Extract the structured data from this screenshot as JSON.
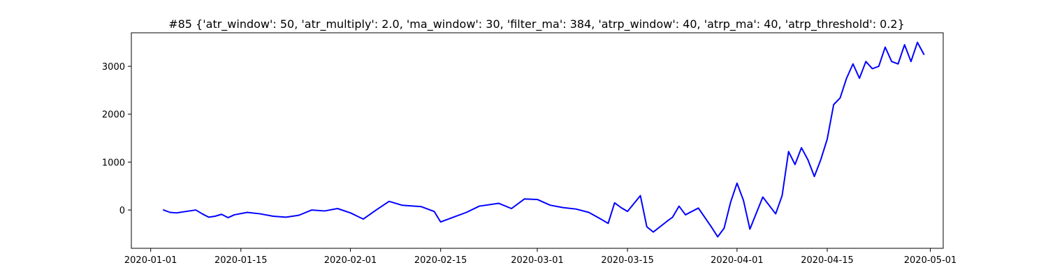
{
  "chart_data": {
    "type": "line",
    "title": "#85 {'atr_window': 50, 'atr_multiply': 2.0, 'ma_window': 30, 'filter_ma': 384, 'atrp_window': 40, 'atrp_ma': 40, 'atrp_threshold': 0.2}",
    "xlabel": "",
    "ylabel": "",
    "x_ticks": [
      "2020-01-01",
      "2020-01-15",
      "2020-02-01",
      "2020-02-15",
      "2020-03-01",
      "2020-03-15",
      "2020-04-01",
      "2020-04-15",
      "2020-05-01"
    ],
    "y_ticks": [
      0,
      1000,
      2000,
      3000
    ],
    "xlim": [
      "2019-12-29",
      "2020-05-03"
    ],
    "ylim": [
      -800,
      3700
    ],
    "grid": false,
    "series": [
      {
        "color": "#0000ff",
        "points": [
          [
            "2020-01-03",
            0
          ],
          [
            "2020-01-04",
            -50
          ],
          [
            "2020-01-05",
            -60
          ],
          [
            "2020-01-08",
            0
          ],
          [
            "2020-01-09",
            -80
          ],
          [
            "2020-01-10",
            -150
          ],
          [
            "2020-01-11",
            -130
          ],
          [
            "2020-01-12",
            -90
          ],
          [
            "2020-01-13",
            -160
          ],
          [
            "2020-01-14",
            -100
          ],
          [
            "2020-01-16",
            -50
          ],
          [
            "2020-01-18",
            -80
          ],
          [
            "2020-01-20",
            -130
          ],
          [
            "2020-01-22",
            -150
          ],
          [
            "2020-01-24",
            -110
          ],
          [
            "2020-01-26",
            0
          ],
          [
            "2020-01-28",
            -20
          ],
          [
            "2020-01-30",
            30
          ],
          [
            "2020-02-01",
            -60
          ],
          [
            "2020-02-03",
            -190
          ],
          [
            "2020-02-05",
            0
          ],
          [
            "2020-02-07",
            180
          ],
          [
            "2020-02-09",
            100
          ],
          [
            "2020-02-12",
            70
          ],
          [
            "2020-02-14",
            -30
          ],
          [
            "2020-02-15",
            -250
          ],
          [
            "2020-02-17",
            -150
          ],
          [
            "2020-02-19",
            -50
          ],
          [
            "2020-02-21",
            80
          ],
          [
            "2020-02-24",
            140
          ],
          [
            "2020-02-26",
            30
          ],
          [
            "2020-02-28",
            230
          ],
          [
            "2020-03-01",
            220
          ],
          [
            "2020-03-03",
            100
          ],
          [
            "2020-03-05",
            50
          ],
          [
            "2020-03-07",
            20
          ],
          [
            "2020-03-09",
            -50
          ],
          [
            "2020-03-11",
            -200
          ],
          [
            "2020-03-12",
            -280
          ],
          [
            "2020-03-13",
            150
          ],
          [
            "2020-03-14",
            50
          ],
          [
            "2020-03-15",
            -30
          ],
          [
            "2020-03-17",
            300
          ],
          [
            "2020-03-18",
            -350
          ],
          [
            "2020-03-19",
            -460
          ],
          [
            "2020-03-21",
            -250
          ],
          [
            "2020-03-22",
            -150
          ],
          [
            "2020-03-23",
            80
          ],
          [
            "2020-03-24",
            -100
          ],
          [
            "2020-03-26",
            40
          ],
          [
            "2020-03-28",
            -350
          ],
          [
            "2020-03-29",
            -560
          ],
          [
            "2020-03-30",
            -380
          ],
          [
            "2020-03-31",
            160
          ],
          [
            "2020-04-01",
            560
          ],
          [
            "2020-04-02",
            200
          ],
          [
            "2020-04-03",
            -400
          ],
          [
            "2020-04-05",
            270
          ],
          [
            "2020-04-07",
            -80
          ],
          [
            "2020-04-08",
            300
          ],
          [
            "2020-04-09",
            1220
          ],
          [
            "2020-04-10",
            950
          ],
          [
            "2020-04-11",
            1300
          ],
          [
            "2020-04-12",
            1050
          ],
          [
            "2020-04-13",
            700
          ],
          [
            "2020-04-14",
            1050
          ],
          [
            "2020-04-15",
            1480
          ],
          [
            "2020-04-16",
            2200
          ],
          [
            "2020-04-17",
            2340
          ],
          [
            "2020-04-18",
            2750
          ],
          [
            "2020-04-19",
            3050
          ],
          [
            "2020-04-20",
            2750
          ],
          [
            "2020-04-21",
            3100
          ],
          [
            "2020-04-22",
            2950
          ],
          [
            "2020-04-23",
            3000
          ],
          [
            "2020-04-24",
            3400
          ],
          [
            "2020-04-25",
            3100
          ],
          [
            "2020-04-26",
            3050
          ],
          [
            "2020-04-27",
            3450
          ],
          [
            "2020-04-28",
            3100
          ],
          [
            "2020-04-29",
            3500
          ],
          [
            "2020-04-30",
            3250
          ]
        ]
      }
    ]
  }
}
